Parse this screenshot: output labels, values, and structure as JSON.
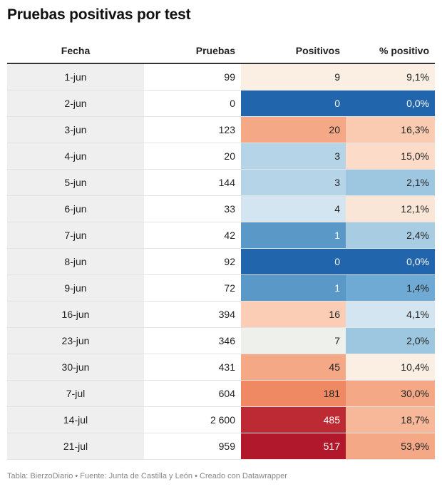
{
  "title": "Pruebas positivas por test",
  "headers": {
    "fecha": "Fecha",
    "pruebas": "Pruebas",
    "positivos": "Positivos",
    "pct": "% positivo"
  },
  "footer": "Tabla: BierzoDiario • Fuente: Junta de Castilla y León • Creado con Datawrapper",
  "chart_data": {
    "type": "table",
    "title": "Pruebas positivas por test",
    "columns": [
      "Fecha",
      "Pruebas",
      "Positivos",
      "% positivo"
    ],
    "rows": [
      {
        "fecha": "1-jun",
        "pruebas": "99",
        "positivos": "9",
        "pct": "9,1%",
        "pos_color": "#fbefe3",
        "pct_color": "#fbefe3"
      },
      {
        "fecha": "2-jun",
        "pruebas": "0",
        "positivos": "0",
        "pct": "0,0%",
        "pos_color": "#2166ac",
        "pct_color": "#2166ac"
      },
      {
        "fecha": "3-jun",
        "pruebas": "123",
        "positivos": "20",
        "pct": "16,3%",
        "pos_color": "#f4a886",
        "pct_color": "#facbb0"
      },
      {
        "fecha": "4-jun",
        "pruebas": "20",
        "positivos": "3",
        "pct": "15,0%",
        "pos_color": "#b5d4e7",
        "pct_color": "#fcdcc8"
      },
      {
        "fecha": "5-jun",
        "pruebas": "144",
        "positivos": "3",
        "pct": "2,1%",
        "pos_color": "#b5d4e7",
        "pct_color": "#9dc7e0"
      },
      {
        "fecha": "6-jun",
        "pruebas": "33",
        "positivos": "4",
        "pct": "12,1%",
        "pos_color": "#d2e5f0",
        "pct_color": "#fae6d6"
      },
      {
        "fecha": "7-jun",
        "pruebas": "42",
        "positivos": "1",
        "pct": "2,4%",
        "pos_color": "#5a98c8",
        "pct_color": "#a8cde3"
      },
      {
        "fecha": "8-jun",
        "pruebas": "92",
        "positivos": "0",
        "pct": "0,0%",
        "pos_color": "#2166ac",
        "pct_color": "#2166ac"
      },
      {
        "fecha": "9-jun",
        "pruebas": "72",
        "positivos": "1",
        "pct": "1,4%",
        "pos_color": "#5a98c8",
        "pct_color": "#6eaad4"
      },
      {
        "fecha": "16-jun",
        "pruebas": "394",
        "positivos": "16",
        "pct": "4,1%",
        "pos_color": "#fbcdb4",
        "pct_color": "#d2e5f0"
      },
      {
        "fecha": "23-jun",
        "pruebas": "346",
        "positivos": "7",
        "pct": "2,0%",
        "pos_color": "#eef0ec",
        "pct_color": "#9dc7e0"
      },
      {
        "fecha": "30-jun",
        "pruebas": "431",
        "positivos": "45",
        "pct": "10,4%",
        "pos_color": "#f4a886",
        "pct_color": "#fbefe3"
      },
      {
        "fecha": "7-jul",
        "pruebas": "604",
        "positivos": "181",
        "pct": "30,0%",
        "pos_color": "#ee8964",
        "pct_color": "#f4a886"
      },
      {
        "fecha": "14-jul",
        "pruebas": "2 600",
        "positivos": "485",
        "pct": "18,7%",
        "pos_color": "#bd2a33",
        "pct_color": "#f7b899"
      },
      {
        "fecha": "21-jul",
        "pruebas": "959",
        "positivos": "517",
        "pct": "53,9%",
        "pos_color": "#b2182b",
        "pct_color": "#f4a886"
      }
    ],
    "light_text_color": "#ffffff",
    "dark_text_color": "#222222"
  }
}
